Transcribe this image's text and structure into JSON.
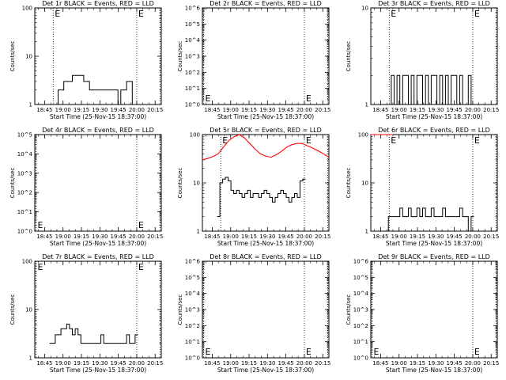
{
  "page": {
    "background": "#ffffff",
    "trace_color": "#000000",
    "lld_color": "#ff0000"
  },
  "chart_data": [
    {
      "type": "line",
      "title": "Det 1r BLACK = Events, RED = LLD",
      "xlabel": "Start Time (25-Nov-15 18:37:00)",
      "ylabel": "Counts/sec",
      "xticks": [
        "18:45",
        "19:00",
        "19:15",
        "19:30",
        "19:45",
        "20:00",
        "20:15"
      ],
      "xlim": [
        "18:37",
        "20:20"
      ],
      "yscale": "log",
      "ylim": [
        1,
        100
      ],
      "yticks": [
        "1",
        "10",
        "100"
      ],
      "markers": [
        {
          "x": "18:52",
          "label": "E"
        },
        {
          "x": "20:00",
          "label": "E"
        }
      ],
      "series": [
        {
          "type": "events",
          "values": [
            1,
            1,
            1,
            2,
            2,
            3,
            3,
            3,
            4,
            4,
            4,
            4,
            3,
            3,
            2,
            2,
            2,
            2,
            2,
            2,
            2,
            2,
            2,
            2,
            1,
            2,
            2,
            3,
            3,
            1,
            1
          ]
        }
      ]
    },
    {
      "type": "line",
      "title": "Det 2r BLACK = Events, RED = LLD",
      "xlabel": "Start Time (25-Nov-15 18:37:00)",
      "ylabel": "Counts/sec",
      "xticks": [
        "18:45",
        "19:00",
        "19:15",
        "19:30",
        "19:45",
        "20:00",
        "20:15"
      ],
      "xlim": [
        "18:37",
        "20:20"
      ],
      "yscale": "log",
      "ylim": [
        1,
        1000000
      ],
      "yticks": [
        "10^0",
        "10^1",
        "10^2",
        "10^3",
        "10^4",
        "10^5",
        "10^6"
      ],
      "markers": [
        {
          "x": "18:38",
          "label": "E"
        },
        {
          "x": "20:00",
          "label": "E"
        }
      ],
      "series": []
    },
    {
      "type": "line",
      "title": "Det 3r BLACK = Events, RED = LLD",
      "xlabel": "Start Time (25-Nov-15 18:37:00)",
      "ylabel": "Counts/sec",
      "xticks": [
        "18:45",
        "19:00",
        "19:15",
        "19:30",
        "19:45",
        "20:00",
        "20:15"
      ],
      "xlim": [
        "18:37",
        "20:20"
      ],
      "yscale": "log",
      "ylim": [
        1,
        10
      ],
      "yticks": [
        "1",
        "10"
      ],
      "markers": [
        {
          "x": "18:52",
          "label": "E"
        },
        {
          "x": "20:00",
          "label": "E"
        }
      ],
      "series": [
        {
          "type": "events",
          "values": [
            1,
            1,
            2,
            1,
            2,
            1,
            2,
            2,
            1,
            2,
            1,
            2,
            2,
            1,
            2,
            1,
            2,
            2,
            1,
            2,
            1,
            2,
            1,
            2,
            2,
            1,
            2,
            1,
            1,
            2,
            1
          ]
        }
      ]
    },
    {
      "type": "line",
      "title": "Det 4r BLACK = Events, RED = LLD",
      "xlabel": "Start Time (25-Nov-15 18:37:00)",
      "ylabel": "Counts/sec",
      "xticks": [
        "18:45",
        "19:00",
        "19:15",
        "19:30",
        "19:45",
        "20:00",
        "20:15"
      ],
      "xlim": [
        "18:37",
        "20:20"
      ],
      "yscale": "log",
      "ylim": [
        1,
        100000
      ],
      "yticks": [
        "10^0",
        "10^1",
        "10^2",
        "10^3",
        "10^4",
        "10^5"
      ],
      "markers": [
        {
          "x": "18:38",
          "label": "E"
        },
        {
          "x": "20:00",
          "label": "E"
        }
      ],
      "series": []
    },
    {
      "type": "line",
      "title": "Det 5r BLACK = Events, RED = LLD",
      "xlabel": "Start Time (25-Nov-15 18:37:00)",
      "ylabel": "Counts/sec",
      "xticks": [
        "18:45",
        "19:00",
        "19:15",
        "19:30",
        "19:45",
        "20:00",
        "20:15"
      ],
      "xlim": [
        "18:37",
        "20:20"
      ],
      "yscale": "log",
      "ylim": [
        1,
        100
      ],
      "yticks": [
        "1",
        "10",
        "100"
      ],
      "markers": [
        {
          "x": "18:52",
          "label": "E"
        },
        {
          "x": "20:00",
          "label": "E"
        }
      ],
      "series": [
        {
          "type": "events",
          "values": [
            2,
            10,
            12,
            13,
            11,
            7,
            6,
            7,
            6,
            5,
            6,
            7,
            5,
            6,
            6,
            5,
            6,
            7,
            6,
            5,
            4,
            5,
            6,
            7,
            6,
            5,
            4,
            5,
            6,
            5,
            11,
            12
          ]
        },
        {
          "type": "lld",
          "values": [
            30,
            32,
            35,
            40,
            55,
            75,
            90,
            100,
            85,
            65,
            50,
            40,
            36,
            34,
            38,
            45,
            55,
            62,
            66,
            65,
            58,
            52,
            46,
            40,
            34
          ]
        }
      ]
    },
    {
      "type": "line",
      "title": "Det 6r BLACK = Events, RED = LLD",
      "xlabel": "Start Time (25-Nov-15 18:37:00)",
      "ylabel": "Counts/sec",
      "xticks": [
        "18:45",
        "19:00",
        "19:15",
        "19:30",
        "19:45",
        "20:00",
        "20:15"
      ],
      "xlim": [
        "18:37",
        "20:20"
      ],
      "yscale": "log",
      "ylim": [
        1,
        100
      ],
      "yticks": [
        "1",
        "10",
        "100"
      ],
      "markers": [
        {
          "x": "18:52",
          "label": "E"
        },
        {
          "x": "20:00",
          "label": "E"
        }
      ],
      "series": [
        {
          "type": "events",
          "values": [
            1,
            2,
            2,
            2,
            2,
            3,
            2,
            2,
            3,
            2,
            2,
            3,
            2,
            3,
            2,
            2,
            3,
            2,
            2,
            2,
            3,
            2,
            2,
            2,
            2,
            2,
            3,
            2,
            2,
            1,
            2
          ]
        },
        {
          "type": "lld",
          "values": [
            100,
            100
          ]
        }
      ]
    },
    {
      "type": "line",
      "title": "Det 7r BLACK = Events, RED = LLD",
      "xlabel": "Start Time (25-Nov-15 18:37:00)",
      "ylabel": "Counts/sec",
      "xticks": [
        "18:45",
        "19:00",
        "19:15",
        "19:30",
        "19:45",
        "20:00",
        "20:15"
      ],
      "xlim": [
        "18:37",
        "20:20"
      ],
      "yscale": "log",
      "ylim": [
        1,
        100
      ],
      "yticks": [
        "1",
        "10",
        "100"
      ],
      "markers": [
        {
          "x": "18:38",
          "label": "E"
        },
        {
          "x": "20:00",
          "label": "E"
        }
      ],
      "series": [
        {
          "type": "events",
          "values": [
            2,
            2,
            3,
            3,
            4,
            4,
            5,
            4,
            3,
            4,
            3,
            2,
            2,
            2,
            2,
            2,
            2,
            2,
            3,
            2,
            2,
            2,
            2,
            2,
            2,
            2,
            2,
            3,
            2,
            2,
            3
          ]
        }
      ]
    },
    {
      "type": "line",
      "title": "Det 8r BLACK = Events, RED = LLD",
      "xlabel": "Start Time (25-Nov-15 18:37:00)",
      "ylabel": "Counts/sec",
      "xticks": [
        "18:45",
        "19:00",
        "19:15",
        "19:30",
        "19:45",
        "20:00",
        "20:15"
      ],
      "xlim": [
        "18:37",
        "20:20"
      ],
      "yscale": "log",
      "ylim": [
        1,
        1000000
      ],
      "yticks": [
        "10^0",
        "10^1",
        "10^2",
        "10^3",
        "10^4",
        "10^5",
        "10^6"
      ],
      "markers": [
        {
          "x": "18:38",
          "label": "E"
        },
        {
          "x": "20:00",
          "label": "E"
        }
      ],
      "series": []
    },
    {
      "type": "line",
      "title": "Det 9r BLACK = Events, RED = LLD",
      "xlabel": "Start Time (25-Nov-15 18:37:00)",
      "ylabel": "Counts/sec",
      "xticks": [
        "18:45",
        "19:00",
        "19:15",
        "19:30",
        "19:45",
        "20:00",
        "20:15"
      ],
      "xlim": [
        "18:37",
        "20:20"
      ],
      "yscale": "log",
      "ylim": [
        1,
        1000000
      ],
      "yticks": [
        "10^0",
        "10^1",
        "10^2",
        "10^3",
        "10^4",
        "10^5",
        "10^6"
      ],
      "markers": [
        {
          "x": "18:38",
          "label": "E"
        },
        {
          "x": "20:00",
          "label": "E"
        }
      ],
      "series": []
    }
  ]
}
